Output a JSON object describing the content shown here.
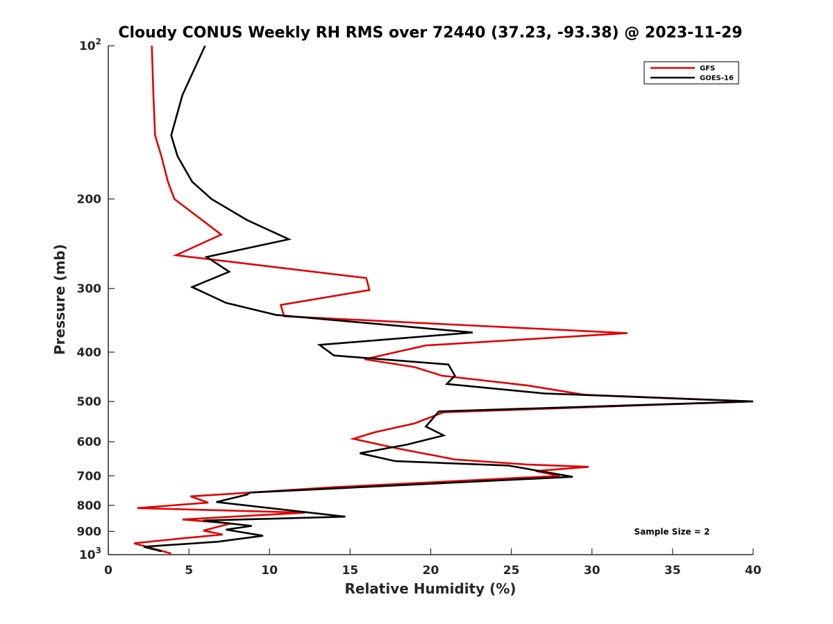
{
  "chart_data": {
    "type": "line",
    "title": "Cloudy CONUS Weekly RH RMS over 72440 (37.23, -93.38) @ 2023-11-29",
    "xlabel": "Relative Humidity (%)",
    "ylabel": "Pressure (mb)",
    "xlim": [
      0,
      40
    ],
    "ylim": [
      100,
      1000
    ],
    "y_scale": "log",
    "y_reversed": true,
    "grid": false,
    "legend_position": "top-right",
    "x_ticks": [
      0,
      5,
      10,
      15,
      20,
      25,
      30,
      35,
      40
    ],
    "y_ticks": [
      100,
      200,
      300,
      400,
      500,
      600,
      700,
      800,
      900,
      1000
    ],
    "y_tick_labels": [
      {
        "base": "10",
        "exp": "2"
      },
      {
        "base": "200"
      },
      {
        "base": "300"
      },
      {
        "base": "400"
      },
      {
        "base": "500"
      },
      {
        "base": "600"
      },
      {
        "base": "700"
      },
      {
        "base": "800"
      },
      {
        "base": "900"
      },
      {
        "base": "10",
        "exp": "3"
      }
    ],
    "series": [
      {
        "name": "GFS",
        "color": "#e00000",
        "points": [
          {
            "x": 2.7,
            "p": 100
          },
          {
            "x": 2.8,
            "p": 125
          },
          {
            "x": 2.9,
            "p": 150
          },
          {
            "x": 3.3,
            "p": 165
          },
          {
            "x": 3.7,
            "p": 185
          },
          {
            "x": 4.1,
            "p": 200
          },
          {
            "x": 7.0,
            "p": 235
          },
          {
            "x": 4.2,
            "p": 258
          },
          {
            "x": 16.0,
            "p": 286
          },
          {
            "x": 16.2,
            "p": 302
          },
          {
            "x": 10.7,
            "p": 323
          },
          {
            "x": 10.9,
            "p": 340
          },
          {
            "x": 32.2,
            "p": 367
          },
          {
            "x": 19.7,
            "p": 388
          },
          {
            "x": 15.9,
            "p": 413
          },
          {
            "x": 19.0,
            "p": 428
          },
          {
            "x": 20.7,
            "p": 445
          },
          {
            "x": 26.0,
            "p": 465
          },
          {
            "x": 29.5,
            "p": 485
          },
          {
            "x": 40.0,
            "p": 500
          },
          {
            "x": 20.8,
            "p": 525
          },
          {
            "x": 19.0,
            "p": 552
          },
          {
            "x": 16.5,
            "p": 575
          },
          {
            "x": 15.2,
            "p": 592
          },
          {
            "x": 17.9,
            "p": 618
          },
          {
            "x": 21.5,
            "p": 650
          },
          {
            "x": 26.0,
            "p": 665
          },
          {
            "x": 29.8,
            "p": 672
          },
          {
            "x": 26.5,
            "p": 685
          },
          {
            "x": 28.0,
            "p": 700
          },
          {
            "x": 14.0,
            "p": 737
          },
          {
            "x": 5.1,
            "p": 768
          },
          {
            "x": 6.2,
            "p": 790
          },
          {
            "x": 1.8,
            "p": 810
          },
          {
            "x": 12.2,
            "p": 827
          },
          {
            "x": 4.6,
            "p": 853
          },
          {
            "x": 7.6,
            "p": 868
          },
          {
            "x": 5.9,
            "p": 897
          },
          {
            "x": 7.1,
            "p": 913
          },
          {
            "x": 4.7,
            "p": 928
          },
          {
            "x": 1.6,
            "p": 950
          },
          {
            "x": 2.9,
            "p": 975
          },
          {
            "x": 3.9,
            "p": 995
          }
        ]
      },
      {
        "name": "GOES-16",
        "color": "#000000",
        "points": [
          {
            "x": 6.0,
            "p": 100
          },
          {
            "x": 4.6,
            "p": 125
          },
          {
            "x": 3.9,
            "p": 150
          },
          {
            "x": 4.3,
            "p": 165
          },
          {
            "x": 5.2,
            "p": 185
          },
          {
            "x": 6.4,
            "p": 200
          },
          {
            "x": 8.6,
            "p": 220
          },
          {
            "x": 11.2,
            "p": 240
          },
          {
            "x": 6.1,
            "p": 260
          },
          {
            "x": 7.5,
            "p": 278
          },
          {
            "x": 5.2,
            "p": 298
          },
          {
            "x": 7.3,
            "p": 320
          },
          {
            "x": 10.4,
            "p": 338
          },
          {
            "x": 22.6,
            "p": 366
          },
          {
            "x": 13.1,
            "p": 387
          },
          {
            "x": 14.0,
            "p": 406
          },
          {
            "x": 21.1,
            "p": 423
          },
          {
            "x": 21.5,
            "p": 445
          },
          {
            "x": 21.0,
            "p": 462
          },
          {
            "x": 27.0,
            "p": 482
          },
          {
            "x": 40.0,
            "p": 500
          },
          {
            "x": 20.5,
            "p": 523
          },
          {
            "x": 19.7,
            "p": 560
          },
          {
            "x": 20.8,
            "p": 583
          },
          {
            "x": 18.5,
            "p": 608
          },
          {
            "x": 15.6,
            "p": 632
          },
          {
            "x": 17.8,
            "p": 655
          },
          {
            "x": 24.8,
            "p": 668
          },
          {
            "x": 28.8,
            "p": 703
          },
          {
            "x": 8.8,
            "p": 755
          },
          {
            "x": 8.6,
            "p": 762
          },
          {
            "x": 6.7,
            "p": 788
          },
          {
            "x": 14.7,
            "p": 842
          },
          {
            "x": 5.9,
            "p": 857
          },
          {
            "x": 8.9,
            "p": 878
          },
          {
            "x": 7.3,
            "p": 893
          },
          {
            "x": 9.6,
            "p": 918
          },
          {
            "x": 6.8,
            "p": 943
          },
          {
            "x": 2.2,
            "p": 965
          },
          {
            "x": 3.3,
            "p": 985
          }
        ]
      }
    ],
    "annotation": "Sample Size = 2"
  }
}
